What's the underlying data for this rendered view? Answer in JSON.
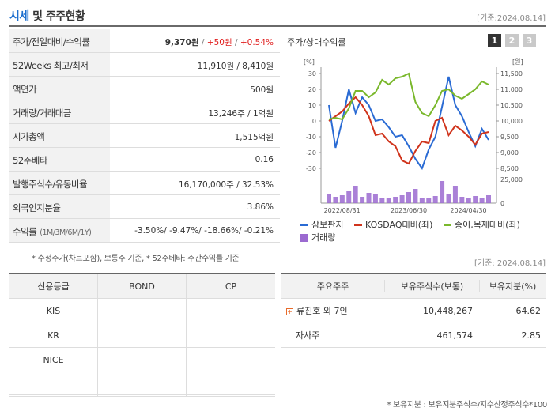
{
  "header": {
    "title_part1": "시세",
    "title_part2": " 및 주주현황",
    "date": "[기준:2024.08.14]"
  },
  "info": [
    {
      "label": "주가/전일대비/수익률",
      "value_main": "9,370원",
      "sep1": " / ",
      "value_change": "+50원",
      "sep2": " / ",
      "value_rate": "+0.54%"
    },
    {
      "label": "52Weeks 최고/최저",
      "value": "11,910원 / 8,410원"
    },
    {
      "label": "액면가",
      "value": "500원"
    },
    {
      "label": "거래량/거래대금",
      "value": "13,246주 / 1억원"
    },
    {
      "label": "시가총액",
      "value": "1,515억원"
    },
    {
      "label": "52주베타",
      "value": "0.16"
    },
    {
      "label": "발행주식수/유동비율",
      "value": "16,170,000주 / 32.53%"
    },
    {
      "label": "외국인지분율",
      "value": "3.86%"
    },
    {
      "label": "수익률",
      "label_sub": "(1M/3M/6M/1Y)",
      "value": "-3.50%/ -9.47%/ -18.66%/ -0.21%"
    }
  ],
  "notes": {
    "left": "* 수정주가(차트포함), 보통주 기준, * 52주베타: 주간수익률 기준",
    "right_date": "[기준: 2024.08.14]",
    "bottom": "* 보유지분 : 보유지분주식수/지수산정주식수*100"
  },
  "chart_panel": {
    "title": "주가/상대수익률",
    "tabs": [
      "1",
      "2",
      "3"
    ],
    "left_unit": "[%]",
    "right_unit": "[원]"
  },
  "chart_data": {
    "type": "line",
    "x_ticks": [
      "2022/08/31",
      "2023/06/30",
      "2024/04/30"
    ],
    "y_left_ticks": [
      "30",
      "20",
      "10",
      "0",
      "-10",
      "-20",
      "-30"
    ],
    "y_right_ticks": [
      "11,500",
      "11,000",
      "10,500",
      "10,000",
      "9,500",
      "9,000",
      "8,500"
    ],
    "volume_ticks": [
      "25,000",
      "0"
    ],
    "series": [
      {
        "name": "삼보판지",
        "color": "#2a6bd4",
        "values": [
          10,
          -17,
          0,
          20,
          5,
          15,
          10,
          0,
          1,
          -4,
          -10,
          -9,
          -16,
          -24,
          -30,
          -18,
          -10,
          9,
          28,
          10,
          3,
          -7,
          -16,
          -5,
          -12
        ]
      },
      {
        "name": "KOSDAQ대비(좌)",
        "color": "#d0341c",
        "values": [
          0,
          3,
          6,
          11,
          15,
          10,
          3,
          -9,
          -8,
          -13,
          -16,
          -25,
          -27,
          -19,
          -13,
          -14,
          0,
          2,
          -9,
          -3,
          -6,
          -10,
          -15,
          -8,
          -7
        ]
      },
      {
        "name": "종이,목재대비(좌)",
        "color": "#7ab82c",
        "values": [
          1,
          2,
          1,
          8,
          19,
          19,
          15,
          18,
          26,
          23,
          27,
          28,
          30,
          12,
          5,
          3,
          10,
          19,
          20,
          16,
          14,
          17,
          20,
          25,
          23
        ]
      },
      {
        "name": "거래량",
        "color": "#9b6ad0",
        "values": [
          12,
          8,
          10,
          16,
          22,
          8,
          13,
          12,
          6,
          7,
          8,
          10,
          14,
          18,
          7,
          6,
          9,
          28,
          12,
          22,
          8,
          6,
          9,
          7,
          10
        ]
      }
    ]
  },
  "credit_table": {
    "headers": [
      "신용등급",
      "BOND",
      "CP"
    ],
    "rows": [
      [
        "KIS",
        "",
        ""
      ],
      [
        "KR",
        "",
        ""
      ],
      [
        "NICE",
        "",
        ""
      ],
      [
        "",
        "",
        ""
      ]
    ]
  },
  "share_table": {
    "headers": [
      "주요주주",
      "보유주식수(보통)",
      "보유지분(%)"
    ],
    "rows": [
      {
        "name": "류진호 외 7인",
        "shares": "10,448,267",
        "pct": "64.62",
        "expandable": true
      },
      {
        "name": "자사주",
        "shares": "461,574",
        "pct": "2.85",
        "expandable": false
      }
    ]
  }
}
